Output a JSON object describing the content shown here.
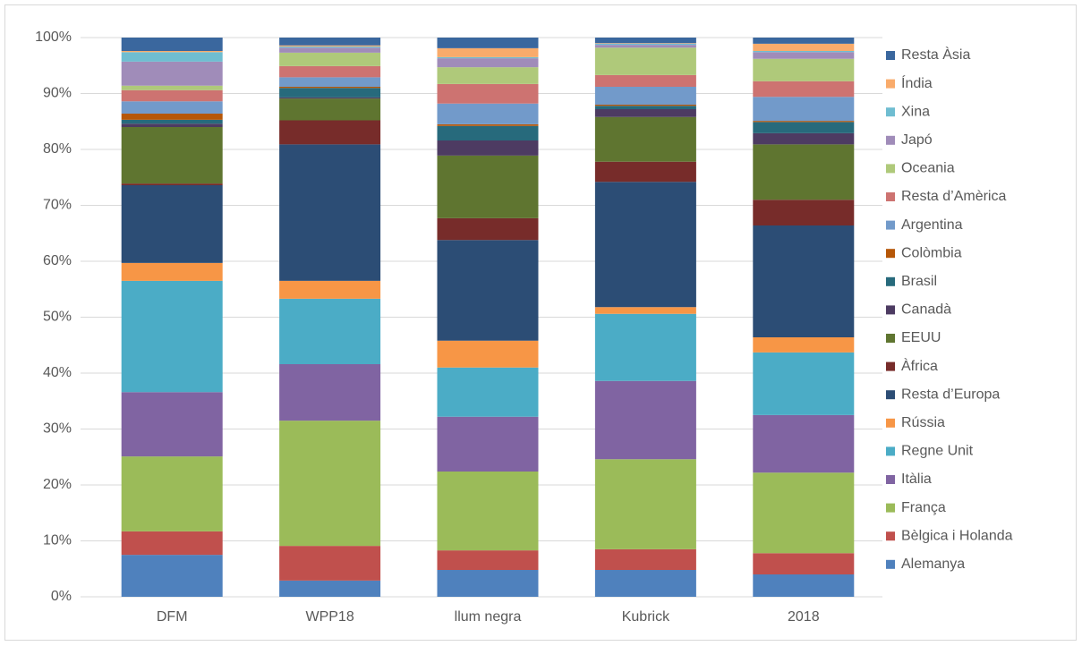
{
  "chart_data": {
    "type": "stacked_bar_percent",
    "categories": [
      "DFM",
      "WPP18",
      "llum negra",
      "Kubrick",
      "2018"
    ],
    "ylim": [
      0,
      100
    ],
    "yticks": [
      {
        "value": 0,
        "label": "0%"
      },
      {
        "value": 10,
        "label": "10%"
      },
      {
        "value": 20,
        "label": "20%"
      },
      {
        "value": 30,
        "label": "30%"
      },
      {
        "value": 40,
        "label": "40%"
      },
      {
        "value": 50,
        "label": "50%"
      },
      {
        "value": 60,
        "label": "60%"
      },
      {
        "value": 70,
        "label": "70%"
      },
      {
        "value": 80,
        "label": "80%"
      },
      {
        "value": 90,
        "label": "90%"
      },
      {
        "value": 100,
        "label": "100%"
      }
    ],
    "grid": true,
    "legend": "right",
    "series": [
      {
        "name": "Alemanya",
        "color": "#4f81bd",
        "values": [
          7.5,
          2.9,
          4.8,
          4.8,
          4.0
        ]
      },
      {
        "name": "Bèlgica i Holanda",
        "color": "#c0504d",
        "values": [
          4.2,
          6.2,
          3.5,
          3.7,
          3.8
        ]
      },
      {
        "name": "França",
        "color": "#9bbb59",
        "values": [
          13.4,
          22.4,
          14.1,
          16.1,
          14.4
        ]
      },
      {
        "name": "Itàlia",
        "color": "#8064a2",
        "values": [
          11.5,
          10.1,
          9.8,
          14.0,
          10.3
        ]
      },
      {
        "name": "Regne Unit",
        "color": "#4bacc6",
        "values": [
          19.9,
          11.7,
          8.8,
          12.0,
          11.2
        ]
      },
      {
        "name": "Rússia",
        "color": "#f79646",
        "values": [
          3.2,
          3.2,
          4.8,
          1.2,
          2.7
        ]
      },
      {
        "name": "Resta d’Europa",
        "color": "#2c4d75",
        "values": [
          13.9,
          24.4,
          18.0,
          22.4,
          20.0
        ]
      },
      {
        "name": "Àfrica",
        "color": "#772c2a",
        "values": [
          0.3,
          4.3,
          3.9,
          3.6,
          4.6
        ]
      },
      {
        "name": "EEUU",
        "color": "#5f7530",
        "values": [
          10.1,
          3.9,
          11.2,
          8.0,
          9.9
        ]
      },
      {
        "name": "Canadà",
        "color": "#4d3b62",
        "values": [
          0.6,
          0.2,
          2.7,
          1.4,
          2.0
        ]
      },
      {
        "name": "Brasil",
        "color": "#276a7c",
        "values": [
          0.7,
          1.7,
          2.6,
          0.6,
          2.0
        ]
      },
      {
        "name": "Colòmbia",
        "color": "#b65708",
        "values": [
          1.1,
          0.2,
          0.3,
          0.2,
          0.2
        ]
      },
      {
        "name": "Argentina",
        "color": "#729aca",
        "values": [
          2.2,
          1.7,
          3.7,
          3.2,
          4.3
        ]
      },
      {
        "name": "Resta d’Amèrica",
        "color": "#cd7371",
        "values": [
          2.0,
          2.0,
          3.5,
          2.1,
          2.8
        ]
      },
      {
        "name": "Oceania",
        "color": "#afc97a",
        "values": [
          0.8,
          2.4,
          3.0,
          4.9,
          4.0
        ]
      },
      {
        "name": "Japó",
        "color": "#a08cb9",
        "values": [
          4.3,
          0.9,
          1.6,
          0.5,
          1.2
        ]
      },
      {
        "name": "Xina",
        "color": "#6fbdd1",
        "values": [
          1.7,
          0.2,
          0.2,
          0.2,
          0.2
        ]
      },
      {
        "name": "Índia",
        "color": "#f9ab6b",
        "values": [
          0.2,
          0.2,
          1.6,
          0.1,
          1.3
        ]
      },
      {
        "name": "Resta Àsia",
        "color": "#3a679e",
        "values": [
          2.4,
          1.4,
          1.9,
          1.0,
          1.1
        ]
      }
    ]
  }
}
